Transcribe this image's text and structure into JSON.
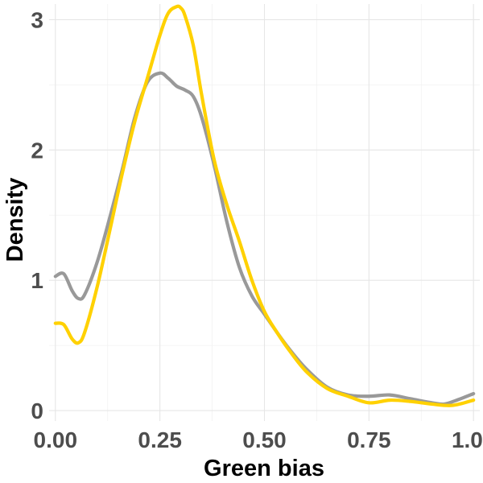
{
  "chart_data": {
    "type": "line",
    "title": "",
    "xlabel": "Green bias",
    "ylabel": "Density",
    "xlim": [
      -0.015,
      1.015
    ],
    "ylim": [
      -0.08,
      3.12
    ],
    "x_ticks": [
      0,
      0.25,
      0.5,
      0.75,
      1
    ],
    "x_tick_labels": [
      "0.00",
      "0.25",
      "0.50",
      "0.75",
      "1.00"
    ],
    "y_ticks": [
      0,
      1,
      2,
      3
    ],
    "y_tick_labels": [
      "0",
      "1",
      "2",
      "3"
    ],
    "grid": true,
    "legend": "none",
    "series": [
      {
        "color": "#999999",
        "x": [
          0,
          0.02,
          0.04,
          0.055,
          0.07,
          0.1,
          0.13,
          0.16,
          0.19,
          0.22,
          0.25,
          0.27,
          0.29,
          0.31,
          0.33,
          0.35,
          0.38,
          0.41,
          0.44,
          0.47,
          0.5,
          0.53,
          0.56,
          0.6,
          0.65,
          0.7,
          0.75,
          0.8,
          0.85,
          0.9,
          0.93,
          0.96,
          1.0
        ],
        "y": [
          1.03,
          1.05,
          0.92,
          0.86,
          0.89,
          1.14,
          1.48,
          1.85,
          2.25,
          2.52,
          2.59,
          2.55,
          2.49,
          2.46,
          2.41,
          2.25,
          1.88,
          1.45,
          1.1,
          0.88,
          0.74,
          0.6,
          0.47,
          0.32,
          0.18,
          0.12,
          0.11,
          0.12,
          0.09,
          0.06,
          0.05,
          0.08,
          0.13
        ]
      },
      {
        "color": "#FFD100",
        "x": [
          0,
          0.02,
          0.04,
          0.055,
          0.07,
          0.1,
          0.13,
          0.16,
          0.19,
          0.22,
          0.25,
          0.27,
          0.29,
          0.3,
          0.31,
          0.33,
          0.35,
          0.38,
          0.41,
          0.44,
          0.47,
          0.5,
          0.53,
          0.56,
          0.6,
          0.65,
          0.7,
          0.75,
          0.8,
          0.85,
          0.9,
          0.95,
          1.0
        ],
        "y": [
          0.67,
          0.66,
          0.55,
          0.52,
          0.6,
          0.95,
          1.38,
          1.82,
          2.22,
          2.55,
          2.88,
          3.05,
          3.1,
          3.09,
          3.03,
          2.8,
          2.42,
          1.92,
          1.58,
          1.3,
          1.0,
          0.76,
          0.6,
          0.46,
          0.3,
          0.17,
          0.11,
          0.06,
          0.08,
          0.07,
          0.05,
          0.04,
          0.08
        ]
      }
    ]
  }
}
